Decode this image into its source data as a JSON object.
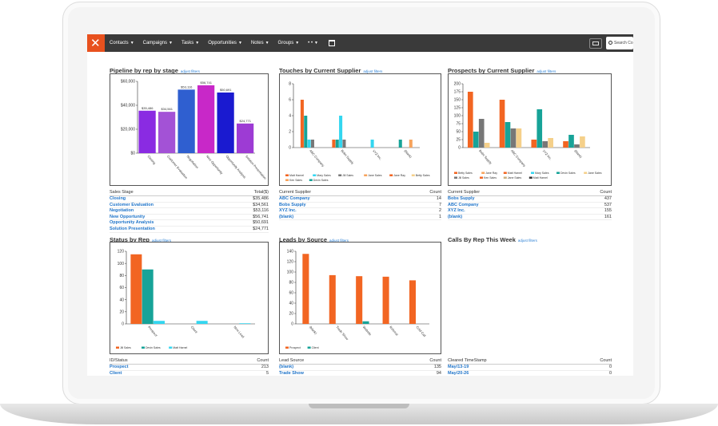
{
  "nav": {
    "items": [
      "Contacts",
      "Campaigns",
      "Tasks",
      "Opportunities",
      "Notes",
      "Groups"
    ],
    "more": "• •",
    "search_placeholder": "Search Co"
  },
  "adjust_label": "adjust filters",
  "panels": {
    "pipeline": {
      "title": "Pipeline by rep by stage",
      "table_head": [
        "Sales Stage",
        "Total($)"
      ],
      "rows": [
        [
          "Closing",
          "$35,486"
        ],
        [
          "Customer Evaluation",
          "$34,561"
        ],
        [
          "Negotiation",
          "$53,116"
        ],
        [
          "New Opportunity",
          "$56,741"
        ],
        [
          "Opportunity Analysis",
          "$50,691"
        ],
        [
          "Solution Presentation",
          "$24,771"
        ]
      ]
    },
    "touches": {
      "title": "Touches by Current Supplier",
      "table_head": [
        "Current Supplier",
        "Count"
      ],
      "rows": [
        [
          "ABC Company",
          "14"
        ],
        [
          "Bobs Supply",
          "7"
        ],
        [
          "XYZ Inc.",
          "2"
        ],
        [
          "(blank)",
          "1"
        ]
      ]
    },
    "prospects": {
      "title": "Prospects by Current Supplier",
      "table_head": [
        "Current Supplier",
        "Count"
      ],
      "rows": [
        [
          "Bobs Supply",
          "437"
        ],
        [
          "ABC Company",
          "537"
        ],
        [
          "XYZ Inc.",
          "155"
        ],
        [
          "(blank)",
          "161"
        ]
      ]
    },
    "status": {
      "title": "Status by Rep",
      "table_head": [
        "ID/Status",
        "Count"
      ],
      "rows": [
        [
          "Prospect",
          "213"
        ],
        [
          "Client",
          "5"
        ]
      ]
    },
    "leads": {
      "title": "Leads by Source",
      "table_head": [
        "Lead Source",
        "Count"
      ],
      "rows": [
        [
          "(blank)",
          "135"
        ],
        [
          "Trade Show",
          "94"
        ]
      ]
    },
    "calls": {
      "title": "Calls By Rep This Week",
      "table_head": [
        "Cleared TimeStamp",
        "Count"
      ],
      "rows": [
        [
          "May/13-19",
          "0"
        ],
        [
          "May/20-26",
          "0"
        ]
      ]
    }
  },
  "chart_data": [
    {
      "type": "bar",
      "categories": [
        "Closing",
        "Customer Evaluation",
        "Negotiation",
        "New Opportunity",
        "Opportunity Analysis",
        "Solution Presentation"
      ],
      "values": [
        35486,
        34561,
        53116,
        56741,
        50691,
        24771
      ],
      "value_labels": [
        "$35,486",
        "$34,561",
        "$53,116",
        "$56,741",
        "$50,691",
        "$24,771"
      ],
      "colors": [
        "#8a2be2",
        "#a352d6",
        "#2f5fd0",
        "#c828c8",
        "#1a1ad0",
        "#9d3bd4"
      ],
      "ytick_labels": [
        "$0",
        "$20,000",
        "$40,000",
        "$60,000"
      ],
      "ylim": [
        0,
        60000
      ]
    },
    {
      "type": "bar",
      "categories": [
        "ABC Company",
        "Bobs Supply",
        "XYZ Inc.",
        "(blank)"
      ],
      "series": [
        {
          "name": "Matt Harnel",
          "color": "#f26522",
          "values": [
            6,
            1,
            0,
            0
          ]
        },
        {
          "name": "Devin Sales",
          "color": "#17a398",
          "values": [
            4,
            1,
            0,
            1
          ]
        },
        {
          "name": "Mary Sales",
          "color": "#33d6f0",
          "values": [
            1,
            4,
            1,
            0
          ]
        },
        {
          "name": "Jill Sales",
          "color": "#777777",
          "values": [
            1,
            1,
            0,
            0
          ]
        },
        {
          "name": "Jane Sales",
          "color": "#f7a35c",
          "values": [
            0,
            0,
            0,
            1
          ]
        }
      ],
      "legend": [
        "Matt Harnel",
        "Mary Sales",
        "Jill Sales",
        "Jane Sales",
        "Jane Ray",
        "Betty Sales",
        "Ken Sales",
        "Devin Sales"
      ],
      "legend_colors": [
        "#f26522",
        "#33d6f0",
        "#777777",
        "#f7a35c",
        "#f26522",
        "#f5d08a",
        "#f7a35c",
        "#17a398"
      ],
      "ytick_labels": [
        "0",
        "2",
        "4",
        "6",
        "8"
      ],
      "ylim": [
        0,
        8
      ]
    },
    {
      "type": "bar",
      "categories": [
        "Bobs Supply",
        "ABC Company",
        "XYZ Inc.",
        "(blank)"
      ],
      "series": [
        {
          "name": "Betty Sales",
          "color": "#f26522",
          "values": [
            175,
            150,
            25,
            20
          ]
        },
        {
          "name": "Devin Sales",
          "color": "#17a398",
          "values": [
            50,
            80,
            120,
            40
          ]
        },
        {
          "name": "Jill Sales",
          "color": "#777777",
          "values": [
            90,
            60,
            20,
            10
          ]
        },
        {
          "name": "Jane Sales",
          "color": "#f5d08a",
          "values": [
            15,
            60,
            30,
            35
          ]
        }
      ],
      "legend": [
        "Betty Sales",
        "Jane Ray",
        "Matt Harnel",
        "Mary Sales",
        "Devin Sales",
        "Jane Sales",
        "Jill Sales",
        "Ken Sales",
        "Jane Sales",
        "Matt Harnel"
      ],
      "legend_colors": [
        "#f26522",
        "#f7a35c",
        "#f26522",
        "#33d6f0",
        "#17a398",
        "#f5d08a",
        "#777777",
        "#f26522",
        "#c8b080",
        "#333333"
      ],
      "ytick_labels": [
        "0",
        "25",
        "50",
        "75",
        "100",
        "125",
        "150",
        "175",
        "200"
      ],
      "ylim": [
        0,
        200
      ]
    },
    {
      "type": "bar",
      "categories": [
        "Prospect",
        "Client",
        "New Lead"
      ],
      "series": [
        {
          "name": "Jill Sales",
          "color": "#f26522",
          "values": [
            115,
            0,
            0
          ]
        },
        {
          "name": "Devin Sales",
          "color": "#17a398",
          "values": [
            90,
            0,
            0
          ]
        },
        {
          "name": "Matt Harnel",
          "color": "#33d6f0",
          "values": [
            5,
            5,
            1
          ]
        }
      ],
      "ytick_labels": [
        "0",
        "20",
        "40",
        "60",
        "80",
        "100",
        "120"
      ],
      "ylim": [
        0,
        120
      ]
    },
    {
      "type": "bar",
      "categories": [
        "(blank)",
        "Trade Show",
        "Website",
        "Referral",
        "Cold Call"
      ],
      "series": [
        {
          "name": "Prospect",
          "color": "#f26522",
          "values": [
            135,
            94,
            92,
            91,
            84
          ]
        },
        {
          "name": "Client",
          "color": "#17a398",
          "values": [
            0,
            0,
            5,
            0,
            0
          ]
        }
      ],
      "ytick_labels": [
        "0",
        "20",
        "40",
        "60",
        "80",
        "100",
        "120",
        "140"
      ],
      "ylim": [
        0,
        140
      ]
    }
  ]
}
